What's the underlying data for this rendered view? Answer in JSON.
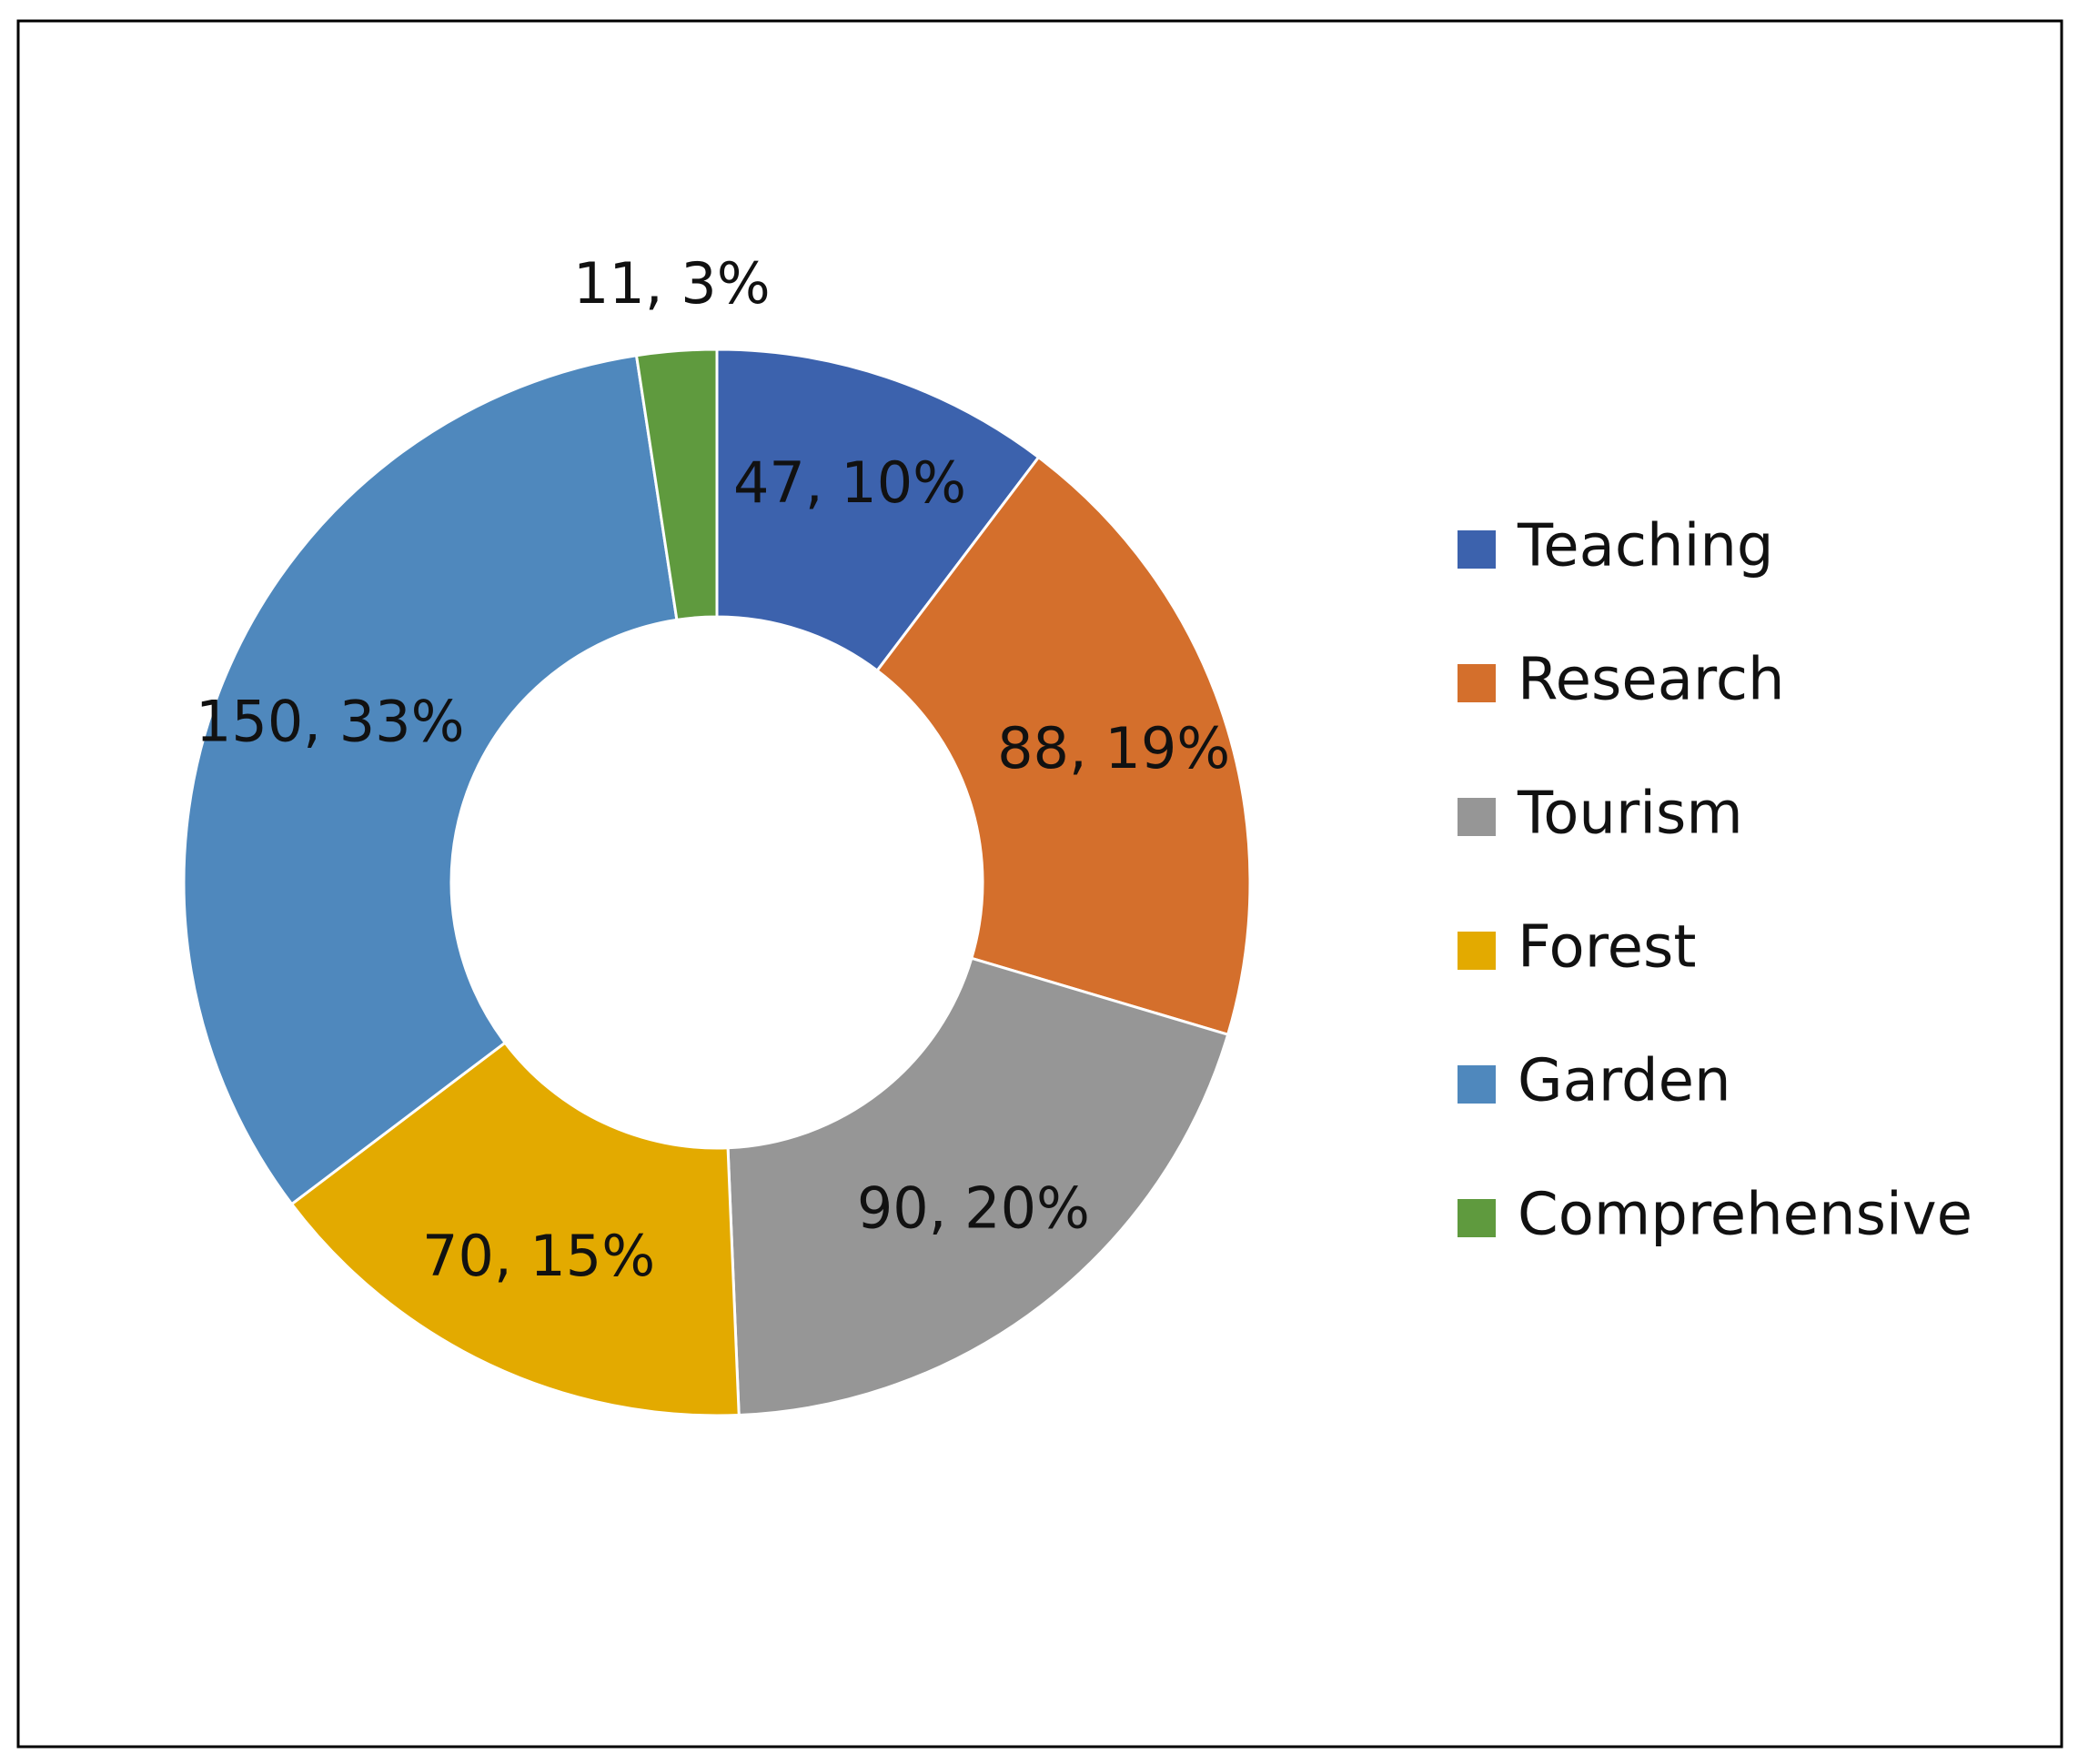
{
  "chart_data": {
    "type": "donut",
    "categories": [
      "Teaching",
      "Research",
      "Tourism",
      "Forest",
      "Garden",
      "Comprehensive"
    ],
    "values": [
      47,
      88,
      90,
      70,
      150,
      11
    ],
    "value_labels": [
      "47, 10%",
      "88, 19%",
      "90, 20%",
      "70, 15%",
      "150, 33%",
      "11, 3%"
    ],
    "colors": [
      "#3c62ad",
      "#d46f2c",
      "#969696",
      "#e3aa00",
      "#4f88bd",
      "#5f9a3e"
    ],
    "legend": "right"
  }
}
